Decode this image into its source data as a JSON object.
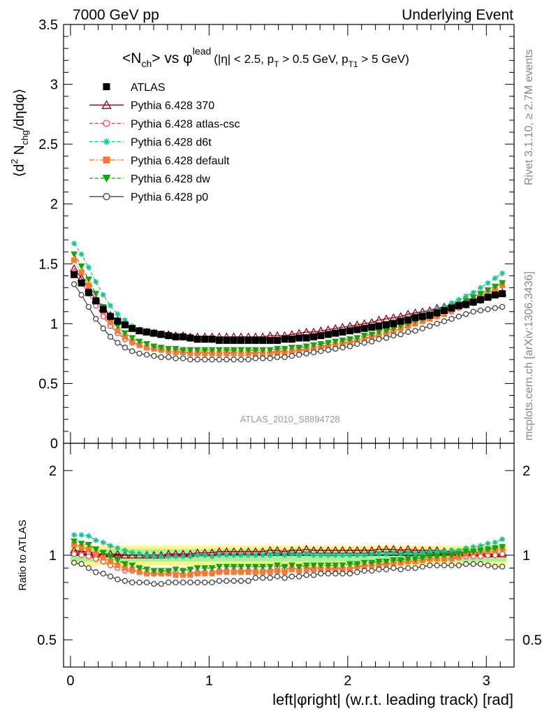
{
  "header": {
    "left": "7000 GeV pp",
    "right": "Underlying Event"
  },
  "side_labels": {
    "rivet": "Rivet 3.1.10, ≥ 2.7M events",
    "mcplots": "mcplots.cern.ch [arXiv:1306.3436]"
  },
  "analysis_label": "ATLAS_2010_S8894728",
  "plot_title": {
    "main": "<N",
    "sub1": "ch",
    "mid": "> vs φ",
    "sup": "lead",
    "cuts_a": "(|η| < 2.5, p",
    "cuts_sub1": "T",
    "cuts_b": " > 0.5 GeV, p",
    "cuts_sub2": "T1",
    "cuts_c": " > 5 GeV)"
  },
  "ylabel_top": {
    "a": "⟨d",
    "sup": "2",
    "b": " N",
    "sub": "chg",
    "c": "/dηdφ⟩"
  },
  "ylabel_bottom": "Ratio to ATLAS",
  "xlabel": "left|φright| (w.r.t. leading track) [rad]",
  "colors": {
    "atlas": "#000000",
    "p370": "#990019",
    "atlascsc": "#ff3d5f",
    "d6t": "#17c491",
    "default": "#ff7a2e",
    "dw": "#16a30b",
    "p0": "#444444",
    "band_inner": "#a8f09a",
    "band_outer": "#fdf57f"
  },
  "chart_data": [
    {
      "type": "scatter",
      "panel": "main",
      "xlim": [
        -0.05,
        3.2
      ],
      "ylim": [
        0,
        3.5
      ],
      "x_ticks": [
        "0",
        "1",
        "2",
        "3"
      ],
      "y_ticks": [
        "0",
        "0.5",
        "1",
        "1.5",
        "2",
        "2.5",
        "3",
        "3.5"
      ],
      "x": [
        0.026,
        0.079,
        0.131,
        0.183,
        0.236,
        0.288,
        0.34,
        0.393,
        0.445,
        0.497,
        0.55,
        0.602,
        0.654,
        0.707,
        0.759,
        0.812,
        0.864,
        0.916,
        0.969,
        1.021,
        1.073,
        1.126,
        1.178,
        1.23,
        1.283,
        1.335,
        1.387,
        1.44,
        1.492,
        1.545,
        1.597,
        1.649,
        1.702,
        1.754,
        1.806,
        1.859,
        1.911,
        1.963,
        2.016,
        2.068,
        2.12,
        2.173,
        2.225,
        2.278,
        2.33,
        2.382,
        2.435,
        2.487,
        2.539,
        2.592,
        2.644,
        2.696,
        2.749,
        2.801,
        2.853,
        2.906,
        2.958,
        3.011,
        3.063,
        3.115
      ],
      "series": [
        {
          "name": "ATLAS",
          "key": "atlas",
          "marker": "square-filled",
          "line": "none",
          "values": [
            1.41,
            1.34,
            1.26,
            1.19,
            1.12,
            1.06,
            1.02,
            0.99,
            0.96,
            0.94,
            0.93,
            0.92,
            0.91,
            0.9,
            0.89,
            0.89,
            0.88,
            0.87,
            0.87,
            0.87,
            0.86,
            0.86,
            0.86,
            0.86,
            0.86,
            0.86,
            0.86,
            0.86,
            0.86,
            0.87,
            0.87,
            0.88,
            0.88,
            0.89,
            0.9,
            0.91,
            0.92,
            0.93,
            0.94,
            0.95,
            0.96,
            0.97,
            0.98,
            0.99,
            1.0,
            1.02,
            1.03,
            1.05,
            1.06,
            1.07,
            1.09,
            1.11,
            1.13,
            1.15,
            1.16,
            1.18,
            1.2,
            1.22,
            1.24,
            1.25
          ]
        },
        {
          "name": "Pythia 6.428 370",
          "key": "p370",
          "marker": "triangle-open",
          "line": "solid",
          "values": [
            1.46,
            1.38,
            1.29,
            1.2,
            1.13,
            1.07,
            1.03,
            0.99,
            0.96,
            0.94,
            0.93,
            0.92,
            0.91,
            0.91,
            0.9,
            0.9,
            0.89,
            0.89,
            0.89,
            0.89,
            0.89,
            0.89,
            0.89,
            0.89,
            0.89,
            0.89,
            0.89,
            0.9,
            0.9,
            0.9,
            0.91,
            0.92,
            0.93,
            0.93,
            0.94,
            0.95,
            0.96,
            0.97,
            0.98,
            0.99,
            1.0,
            1.01,
            1.03,
            1.04,
            1.05,
            1.06,
            1.08,
            1.09,
            1.1,
            1.11,
            1.13,
            1.14,
            1.16,
            1.17,
            1.19,
            1.2,
            1.22,
            1.23,
            1.25,
            1.26
          ]
        },
        {
          "name": "Pythia 6.428 atlas-csc",
          "key": "atlascsc",
          "marker": "circle-open",
          "line": "dashed",
          "values": [
            1.43,
            1.34,
            1.25,
            1.15,
            1.06,
            0.98,
            0.92,
            0.87,
            0.84,
            0.82,
            0.8,
            0.79,
            0.78,
            0.77,
            0.77,
            0.76,
            0.76,
            0.76,
            0.76,
            0.76,
            0.76,
            0.76,
            0.76,
            0.76,
            0.76,
            0.76,
            0.76,
            0.76,
            0.77,
            0.77,
            0.78,
            0.78,
            0.79,
            0.8,
            0.81,
            0.82,
            0.83,
            0.84,
            0.85,
            0.86,
            0.88,
            0.89,
            0.91,
            0.92,
            0.94,
            0.96,
            0.98,
            1.0,
            1.02,
            1.04,
            1.06,
            1.08,
            1.1,
            1.13,
            1.15,
            1.17,
            1.19,
            1.22,
            1.24,
            1.26
          ]
        },
        {
          "name": "Pythia 6.428 d6t",
          "key": "d6t",
          "marker": "star",
          "line": "dashed",
          "values": [
            1.67,
            1.58,
            1.47,
            1.35,
            1.24,
            1.15,
            1.08,
            1.03,
            0.98,
            0.95,
            0.93,
            0.91,
            0.9,
            0.89,
            0.88,
            0.88,
            0.87,
            0.87,
            0.87,
            0.86,
            0.86,
            0.86,
            0.86,
            0.86,
            0.86,
            0.86,
            0.86,
            0.86,
            0.87,
            0.87,
            0.88,
            0.88,
            0.89,
            0.89,
            0.9,
            0.91,
            0.92,
            0.93,
            0.94,
            0.95,
            0.96,
            0.98,
            0.99,
            1.0,
            1.02,
            1.03,
            1.05,
            1.06,
            1.08,
            1.1,
            1.12,
            1.14,
            1.17,
            1.2,
            1.23,
            1.26,
            1.3,
            1.34,
            1.38,
            1.42
          ]
        },
        {
          "name": "Pythia 6.428 default",
          "key": "default",
          "marker": "square-filled",
          "line": "dashdot",
          "values": [
            1.53,
            1.43,
            1.32,
            1.2,
            1.1,
            1.01,
            0.94,
            0.89,
            0.85,
            0.82,
            0.8,
            0.79,
            0.78,
            0.77,
            0.76,
            0.76,
            0.75,
            0.75,
            0.75,
            0.75,
            0.75,
            0.75,
            0.75,
            0.75,
            0.75,
            0.75,
            0.75,
            0.75,
            0.76,
            0.76,
            0.77,
            0.77,
            0.78,
            0.79,
            0.8,
            0.81,
            0.82,
            0.83,
            0.84,
            0.86,
            0.87,
            0.89,
            0.9,
            0.92,
            0.94,
            0.96,
            0.98,
            1.0,
            1.02,
            1.04,
            1.06,
            1.08,
            1.11,
            1.14,
            1.17,
            1.2,
            1.23,
            1.26,
            1.29,
            1.32
          ]
        },
        {
          "name": "Pythia 6.428 dw",
          "key": "dw",
          "marker": "triangle-down-filled",
          "line": "dashed",
          "values": [
            1.58,
            1.48,
            1.37,
            1.25,
            1.14,
            1.05,
            0.98,
            0.92,
            0.88,
            0.85,
            0.83,
            0.81,
            0.8,
            0.79,
            0.79,
            0.78,
            0.78,
            0.78,
            0.78,
            0.78,
            0.78,
            0.78,
            0.78,
            0.78,
            0.78,
            0.78,
            0.78,
            0.78,
            0.79,
            0.79,
            0.8,
            0.8,
            0.81,
            0.82,
            0.83,
            0.84,
            0.85,
            0.86,
            0.87,
            0.88,
            0.9,
            0.91,
            0.93,
            0.94,
            0.96,
            0.98,
            1.0,
            1.02,
            1.04,
            1.06,
            1.08,
            1.11,
            1.13,
            1.16,
            1.19,
            1.22,
            1.25,
            1.28,
            1.31,
            1.34
          ]
        },
        {
          "name": "Pythia 6.428 p0",
          "key": "p0",
          "marker": "circle-open",
          "line": "solid",
          "values": [
            1.33,
            1.24,
            1.14,
            1.04,
            0.96,
            0.89,
            0.84,
            0.8,
            0.77,
            0.75,
            0.74,
            0.73,
            0.72,
            0.72,
            0.71,
            0.71,
            0.7,
            0.7,
            0.7,
            0.7,
            0.7,
            0.7,
            0.7,
            0.7,
            0.7,
            0.71,
            0.71,
            0.71,
            0.72,
            0.72,
            0.73,
            0.74,
            0.75,
            0.76,
            0.77,
            0.78,
            0.79,
            0.8,
            0.81,
            0.83,
            0.84,
            0.85,
            0.87,
            0.88,
            0.9,
            0.91,
            0.93,
            0.94,
            0.96,
            0.98,
            1.0,
            1.02,
            1.04,
            1.06,
            1.08,
            1.1,
            1.11,
            1.12,
            1.13,
            1.14
          ]
        }
      ]
    },
    {
      "type": "scatter",
      "panel": "ratio",
      "xlim": [
        -0.05,
        3.2
      ],
      "ylim_log": [
        0.4,
        2.5
      ],
      "ylabel": "Ratio to ATLAS",
      "y_ticks": [
        "0.5",
        "1",
        "2"
      ],
      "reference_line": 1.0,
      "band_outer": [
        0.92,
        1.08
      ],
      "band_inner": [
        0.95,
        1.05
      ],
      "x": [
        0.026,
        0.079,
        0.131,
        0.183,
        0.236,
        0.288,
        0.34,
        0.393,
        0.445,
        0.497,
        0.55,
        0.602,
        0.654,
        0.707,
        0.759,
        0.812,
        0.864,
        0.916,
        0.969,
        1.021,
        1.073,
        1.126,
        1.178,
        1.23,
        1.283,
        1.335,
        1.387,
        1.44,
        1.492,
        1.545,
        1.597,
        1.649,
        1.702,
        1.754,
        1.806,
        1.859,
        1.911,
        1.963,
        2.016,
        2.068,
        2.12,
        2.173,
        2.225,
        2.278,
        2.33,
        2.382,
        2.435,
        2.487,
        2.539,
        2.592,
        2.644,
        2.696,
        2.749,
        2.801,
        2.853,
        2.906,
        2.958,
        3.011,
        3.063,
        3.115
      ],
      "series": [
        {
          "name": "Pythia 6.428 370",
          "key": "p370",
          "marker": "triangle-open",
          "line": "solid",
          "values": [
            1.04,
            1.03,
            1.03,
            1.01,
            1.01,
            1.01,
            1.01,
            1.0,
            1.0,
            1.0,
            1.0,
            1.0,
            1.0,
            1.01,
            1.01,
            1.01,
            1.01,
            1.02,
            1.02,
            1.02,
            1.03,
            1.03,
            1.03,
            1.03,
            1.03,
            1.03,
            1.03,
            1.04,
            1.04,
            1.03,
            1.04,
            1.04,
            1.05,
            1.04,
            1.04,
            1.04,
            1.04,
            1.04,
            1.04,
            1.04,
            1.04,
            1.04,
            1.05,
            1.05,
            1.05,
            1.04,
            1.05,
            1.04,
            1.04,
            1.04,
            1.04,
            1.03,
            1.03,
            1.02,
            1.03,
            1.02,
            1.02,
            1.01,
            1.01,
            1.01
          ]
        },
        {
          "name": "Pythia 6.428 atlas-csc",
          "key": "atlascsc",
          "marker": "circle-open",
          "line": "dashed",
          "values": [
            1.01,
            1.0,
            0.99,
            0.97,
            0.95,
            0.92,
            0.9,
            0.88,
            0.88,
            0.87,
            0.86,
            0.86,
            0.86,
            0.86,
            0.87,
            0.85,
            0.86,
            0.87,
            0.87,
            0.87,
            0.88,
            0.88,
            0.88,
            0.88,
            0.88,
            0.88,
            0.88,
            0.88,
            0.9,
            0.89,
            0.9,
            0.89,
            0.9,
            0.9,
            0.9,
            0.9,
            0.9,
            0.9,
            0.9,
            0.91,
            0.92,
            0.92,
            0.93,
            0.93,
            0.94,
            0.94,
            0.95,
            0.95,
            0.96,
            0.97,
            0.97,
            0.97,
            0.97,
            0.98,
            0.99,
            0.99,
            0.99,
            1.0,
            1.0,
            1.01
          ]
        },
        {
          "name": "Pythia 6.428 d6t",
          "key": "d6t",
          "marker": "star",
          "line": "dashed",
          "values": [
            1.18,
            1.18,
            1.17,
            1.13,
            1.11,
            1.08,
            1.06,
            1.04,
            1.02,
            1.01,
            1.0,
            0.99,
            0.99,
            0.99,
            0.99,
            0.99,
            0.99,
            1.0,
            1.0,
            0.99,
            1.0,
            1.0,
            1.0,
            1.0,
            1.0,
            1.0,
            1.0,
            1.0,
            1.01,
            1.0,
            1.01,
            1.0,
            1.01,
            1.0,
            1.0,
            1.0,
            1.0,
            1.0,
            1.0,
            1.0,
            1.0,
            1.01,
            1.01,
            1.01,
            1.02,
            1.01,
            1.02,
            1.01,
            1.02,
            1.03,
            1.03,
            1.03,
            1.04,
            1.04,
            1.06,
            1.07,
            1.08,
            1.1,
            1.11,
            1.14
          ]
        },
        {
          "name": "Pythia 6.428 default",
          "key": "default",
          "marker": "square-filled",
          "line": "dashdot",
          "values": [
            1.09,
            1.07,
            1.05,
            1.01,
            0.98,
            0.95,
            0.92,
            0.9,
            0.89,
            0.87,
            0.86,
            0.86,
            0.86,
            0.86,
            0.85,
            0.85,
            0.85,
            0.86,
            0.86,
            0.86,
            0.87,
            0.87,
            0.87,
            0.87,
            0.87,
            0.87,
            0.87,
            0.87,
            0.88,
            0.87,
            0.89,
            0.88,
            0.89,
            0.89,
            0.89,
            0.89,
            0.89,
            0.89,
            0.89,
            0.91,
            0.91,
            0.92,
            0.92,
            0.93,
            0.94,
            0.94,
            0.95,
            0.95,
            0.96,
            0.97,
            0.97,
            0.97,
            0.98,
            0.99,
            1.01,
            1.02,
            1.03,
            1.03,
            1.04,
            1.06
          ]
        },
        {
          "name": "Pythia 6.428 dw",
          "key": "dw",
          "marker": "triangle-down-filled",
          "line": "dashed",
          "values": [
            1.12,
            1.1,
            1.09,
            1.05,
            1.02,
            0.99,
            0.96,
            0.93,
            0.92,
            0.9,
            0.89,
            0.88,
            0.88,
            0.88,
            0.89,
            0.88,
            0.89,
            0.9,
            0.9,
            0.9,
            0.91,
            0.91,
            0.91,
            0.91,
            0.91,
            0.91,
            0.91,
            0.91,
            0.92,
            0.91,
            0.92,
            0.91,
            0.92,
            0.92,
            0.92,
            0.92,
            0.92,
            0.92,
            0.93,
            0.93,
            0.94,
            0.94,
            0.95,
            0.95,
            0.96,
            0.96,
            0.97,
            0.97,
            0.98,
            0.99,
            0.99,
            1.0,
            1.0,
            1.01,
            1.03,
            1.03,
            1.04,
            1.05,
            1.06,
            1.07
          ]
        },
        {
          "name": "Pythia 6.428 p0",
          "key": "p0",
          "marker": "circle-open",
          "line": "solid",
          "values": [
            0.94,
            0.93,
            0.9,
            0.87,
            0.86,
            0.84,
            0.82,
            0.81,
            0.8,
            0.8,
            0.8,
            0.79,
            0.79,
            0.8,
            0.8,
            0.8,
            0.8,
            0.8,
            0.8,
            0.8,
            0.81,
            0.81,
            0.81,
            0.81,
            0.81,
            0.83,
            0.83,
            0.83,
            0.84,
            0.83,
            0.84,
            0.84,
            0.85,
            0.85,
            0.86,
            0.86,
            0.86,
            0.86,
            0.86,
            0.87,
            0.88,
            0.88,
            0.89,
            0.89,
            0.9,
            0.89,
            0.9,
            0.9,
            0.91,
            0.92,
            0.92,
            0.92,
            0.92,
            0.92,
            0.93,
            0.93,
            0.93,
            0.92,
            0.91,
            0.91
          ]
        }
      ]
    }
  ]
}
